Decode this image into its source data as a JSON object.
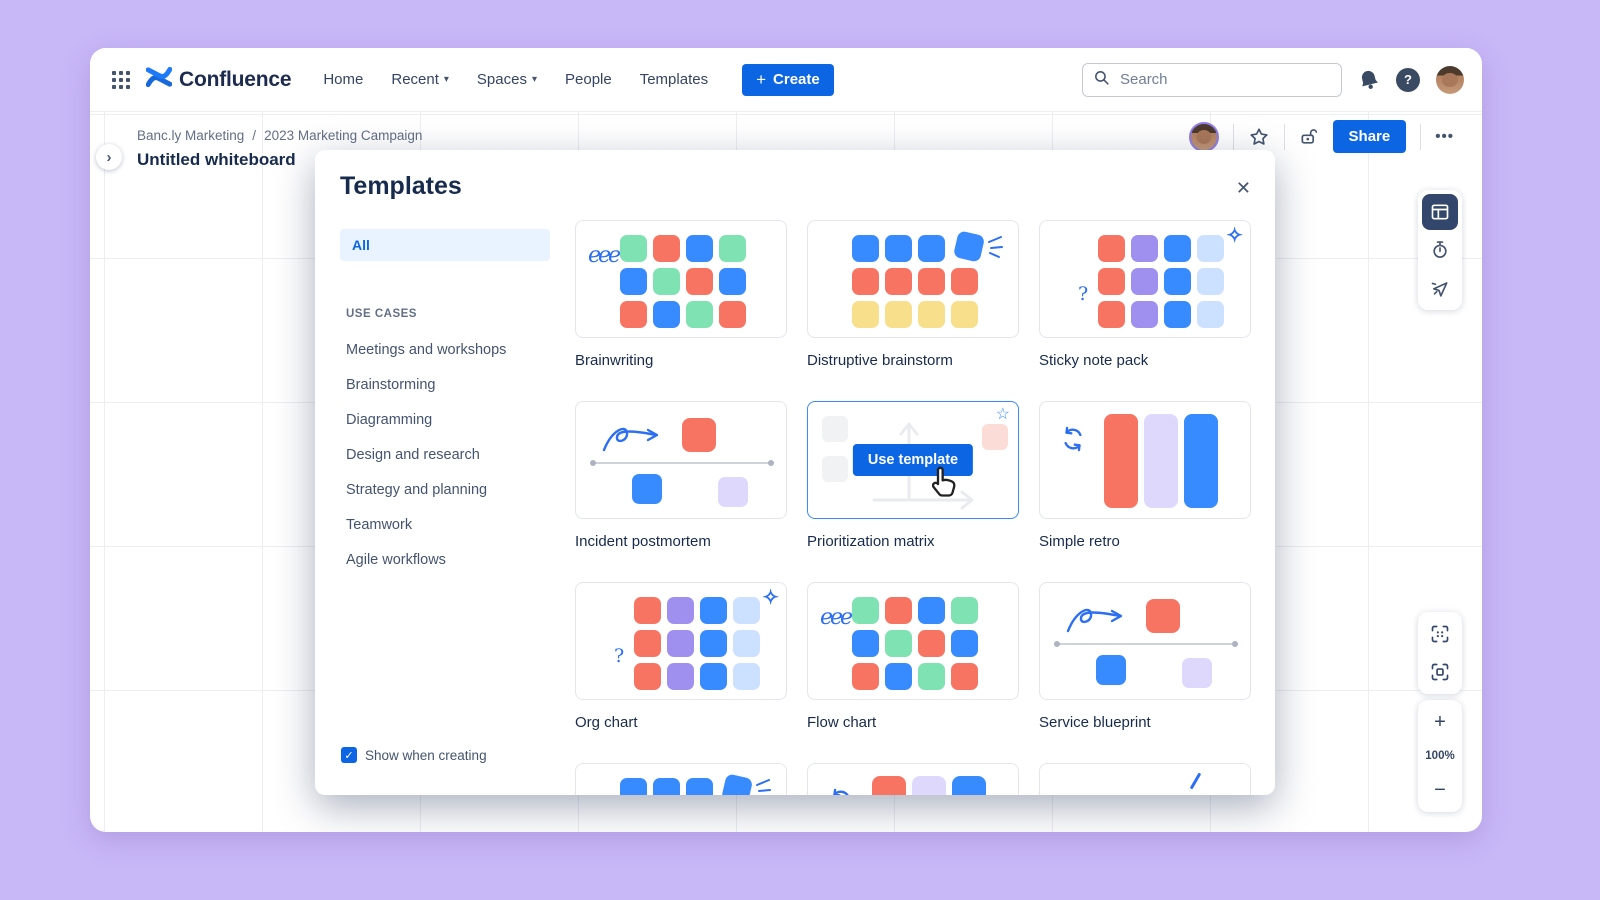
{
  "colors": {
    "o": "#F87462",
    "g": "#7EE2B2",
    "b": "#388BFF",
    "y": "#F8DF8B",
    "p": "#9F8FEF",
    "lb": "#CCE0FF",
    "lv": "#DFD8FD",
    "accent": "#0C66E4",
    "ink": "#172B4D",
    "muted": "#44546F",
    "doodle": "#2D6FF2"
  },
  "icons": {
    "chevron_down": "▾",
    "chevron_right": "›",
    "close": "✕",
    "plus": "+",
    "check": "✓",
    "sparkle": "✧",
    "question": "?",
    "squiggle": "eee",
    "star_outline": "☆",
    "more": "•••"
  },
  "topnav": {
    "brand": "Confluence",
    "items": [
      {
        "label": "Home",
        "chevron": false
      },
      {
        "label": "Recent",
        "chevron": true
      },
      {
        "label": "Spaces",
        "chevron": true
      },
      {
        "label": "People",
        "chevron": false
      },
      {
        "label": "Templates",
        "chevron": false
      }
    ],
    "create_label": "Create",
    "search_placeholder": "Search"
  },
  "board_header": {
    "breadcrumb": [
      "Banc.ly Marketing",
      "2023 Marketing Campaign"
    ],
    "separator": "/",
    "title": "Untitled whiteboard",
    "share_label": "Share"
  },
  "zoom_controls": {
    "zoom_in": "+",
    "level": "100%",
    "zoom_out": "−"
  },
  "modal": {
    "title": "Templates",
    "filter_all": "All",
    "use_cases_header": "USE CASES",
    "categories": [
      "Meetings and workshops",
      "Brainstorming",
      "Diagramming",
      "Design and research",
      "Strategy and planning",
      "Teamwork",
      "Agile workflows"
    ],
    "checkbox_label": "Show when creating",
    "cards": [
      {
        "label": "Brainwriting",
        "thumb": "grid",
        "decor": [
          "squiggle"
        ],
        "grid": [
          [
            "g",
            "o",
            "b",
            "g"
          ],
          [
            "b",
            "g",
            "o",
            "b"
          ],
          [
            "o",
            "b",
            "g",
            "o"
          ]
        ]
      },
      {
        "label": "Distruptive brainstorm",
        "thumb": "grid",
        "decor": [
          "tilt",
          "spark"
        ],
        "grid": [
          [
            "b",
            "b",
            "b",
            "b"
          ],
          [
            "o",
            "o",
            "o",
            "o"
          ],
          [
            "y",
            "y",
            "y",
            "y"
          ]
        ]
      },
      {
        "label": "Sticky note pack",
        "thumb": "grid",
        "decor": [
          "sparkle",
          "question",
          "shift"
        ],
        "grid": [
          [
            "o",
            "p",
            "b",
            "lb"
          ],
          [
            "o",
            "p",
            "b",
            "lb"
          ],
          [
            "o",
            "p",
            "b",
            "lb"
          ]
        ]
      },
      {
        "label": "Incident postmortem",
        "thumb": "timeline"
      },
      {
        "label": "Prioritization matrix",
        "thumb": "hover",
        "button_label": "Use template"
      },
      {
        "label": "Simple retro",
        "thumb": "retro"
      },
      {
        "label": "Org chart",
        "thumb": "grid",
        "decor": [
          "sparkle",
          "question",
          "shift"
        ],
        "grid": [
          [
            "o",
            "p",
            "b",
            "lb"
          ],
          [
            "o",
            "p",
            "b",
            "lb"
          ],
          [
            "o",
            "p",
            "b",
            "lb"
          ]
        ]
      },
      {
        "label": "Flow chart",
        "thumb": "grid",
        "decor": [
          "squiggle"
        ],
        "grid": [
          [
            "g",
            "o",
            "b",
            "g"
          ],
          [
            "b",
            "g",
            "o",
            "b"
          ],
          [
            "o",
            "b",
            "g",
            "o"
          ]
        ]
      },
      {
        "label": "Service blueprint",
        "thumb": "timeline"
      },
      {
        "label": "",
        "thumb": "grid",
        "decor": [
          "tilt",
          "spark"
        ],
        "grid": [
          [
            "b",
            "b",
            "b",
            "b"
          ]
        ]
      },
      {
        "label": "",
        "thumb": "retro"
      },
      {
        "label": "",
        "thumb": "slash"
      }
    ]
  }
}
